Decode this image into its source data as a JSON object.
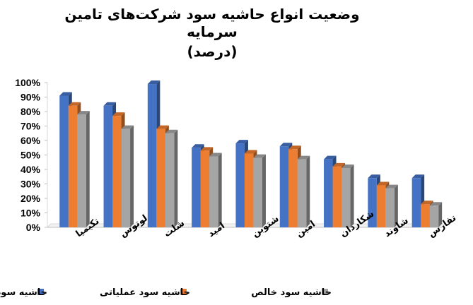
{
  "chart_data": {
    "type": "bar",
    "title_lines": [
      "وضعیت انواع حاشیه سود شرکت‌های تامین",
      "سرمایه",
      "(درصد)"
    ],
    "categories": [
      "تکیمیا",
      "لوتوس",
      "شلت",
      "امید",
      "شتوبن",
      "امین",
      "شکاردان",
      "شاوند",
      "تفارس"
    ],
    "series": [
      {
        "name": "حاشیه سود ناخالص",
        "color": "#4472C4",
        "values": [
          91,
          84,
          99,
          55,
          58,
          56,
          47,
          34,
          34
        ]
      },
      {
        "name": "حاشیه سود عملیاتی",
        "color": "#ED7D31",
        "values": [
          84,
          77,
          68,
          53,
          51,
          54,
          42,
          29,
          16
        ]
      },
      {
        "name": "حاشیه سود خالص",
        "color": "#A5A5A5",
        "values": [
          78,
          68,
          65,
          49,
          48,
          47,
          41,
          27,
          15
        ]
      }
    ],
    "yticks": [
      "0%",
      "10%",
      "20%",
      "30%",
      "40%",
      "50%",
      "60%",
      "70%",
      "80%",
      "90%",
      "100%"
    ],
    "ylim": [
      0,
      100
    ],
    "grid": false,
    "legend_position": "bottom"
  }
}
